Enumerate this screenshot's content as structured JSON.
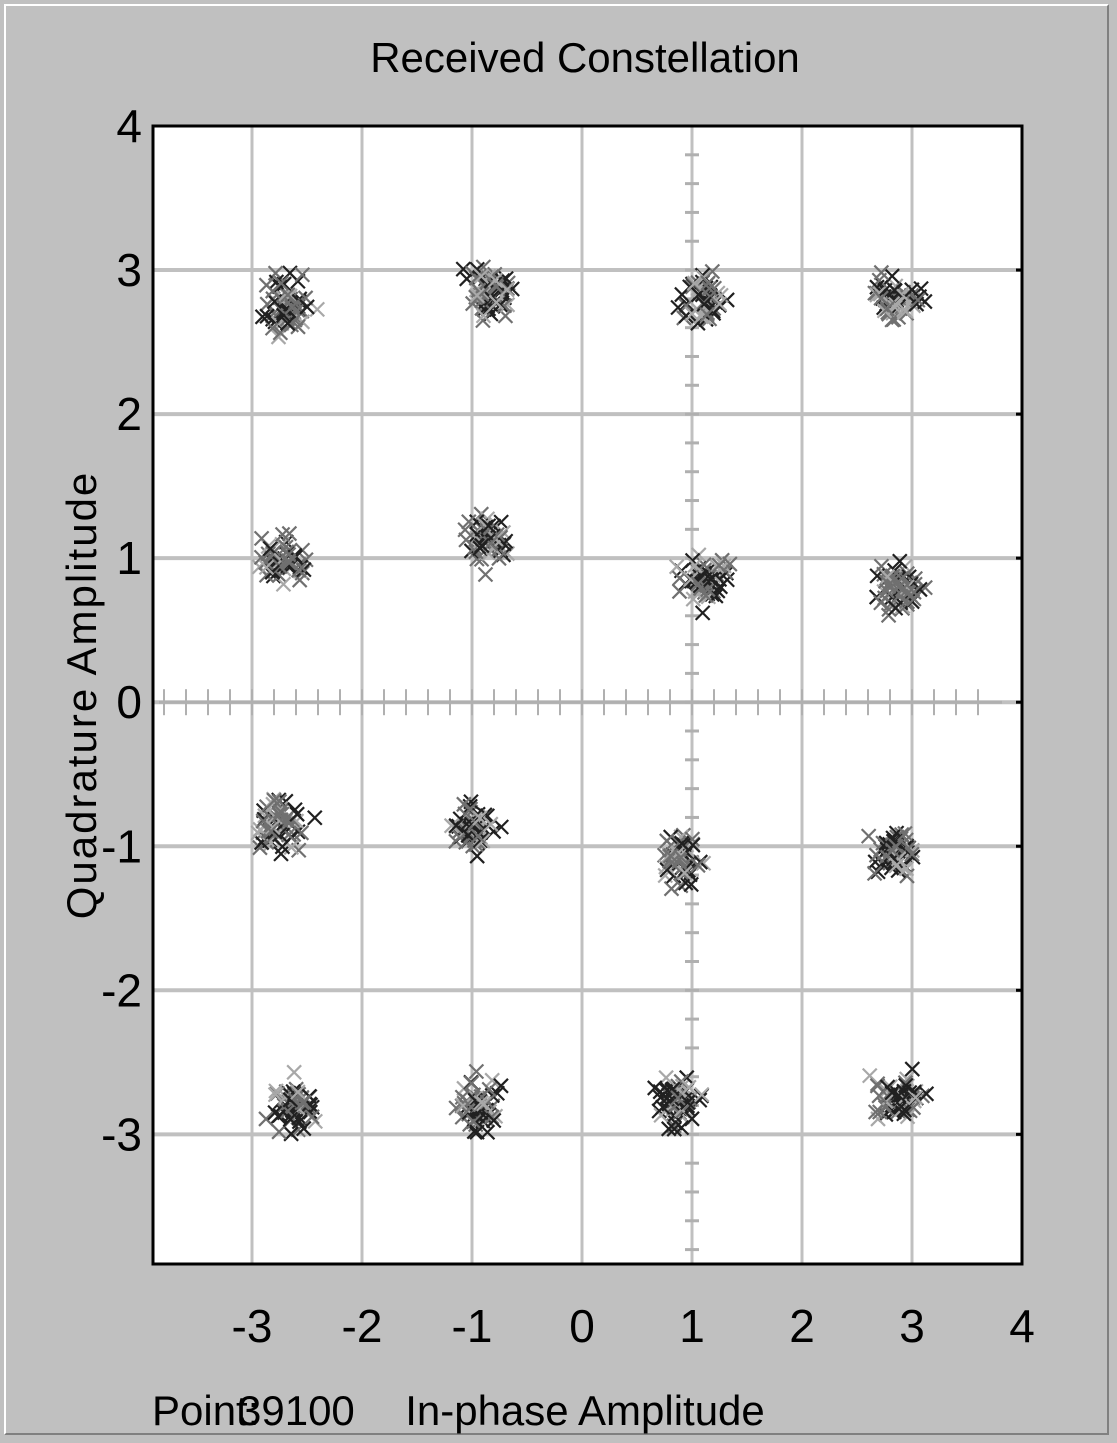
{
  "window": {
    "status_label": "Point:",
    "status_value": "39100"
  },
  "colors": {
    "background": "#c0c0c0",
    "plot_area": "#ffffff",
    "grid": "#c0c0c0",
    "frame": "#000000",
    "axis_ticks": "#b0b0b0",
    "marker_dark": "#202020",
    "marker_mid": "#707070",
    "marker_light": "#a8a8a8"
  },
  "chart_data": {
    "type": "scatter",
    "title": "Received Constellation",
    "xlabel": "In-phase Amplitude",
    "ylabel": "Quadrature Amplitude",
    "xlim": [
      -3.9,
      4
    ],
    "ylim": [
      -3.9,
      4
    ],
    "xticks": [
      -3,
      -2,
      -1,
      0,
      1,
      2,
      3,
      4
    ],
    "yticks": [
      4,
      3,
      2,
      1,
      0,
      -1,
      -2,
      -3
    ],
    "grid": true,
    "marker": "x",
    "clusters": [
      {
        "x": -2.7,
        "y": 2.75
      },
      {
        "x": -0.85,
        "y": 2.85
      },
      {
        "x": 1.1,
        "y": 2.8
      },
      {
        "x": 2.85,
        "y": 2.8
      },
      {
        "x": -2.7,
        "y": 1.0
      },
      {
        "x": -0.85,
        "y": 1.1
      },
      {
        "x": 1.1,
        "y": 0.85
      },
      {
        "x": 2.9,
        "y": 0.8
      },
      {
        "x": -2.75,
        "y": -0.85
      },
      {
        "x": -1.0,
        "y": -0.85
      },
      {
        "x": 0.9,
        "y": -1.1
      },
      {
        "x": 2.85,
        "y": -1.05
      },
      {
        "x": -2.6,
        "y": -2.8
      },
      {
        "x": -0.95,
        "y": -2.8
      },
      {
        "x": 0.85,
        "y": -2.8
      },
      {
        "x": 2.9,
        "y": -2.75
      }
    ]
  }
}
